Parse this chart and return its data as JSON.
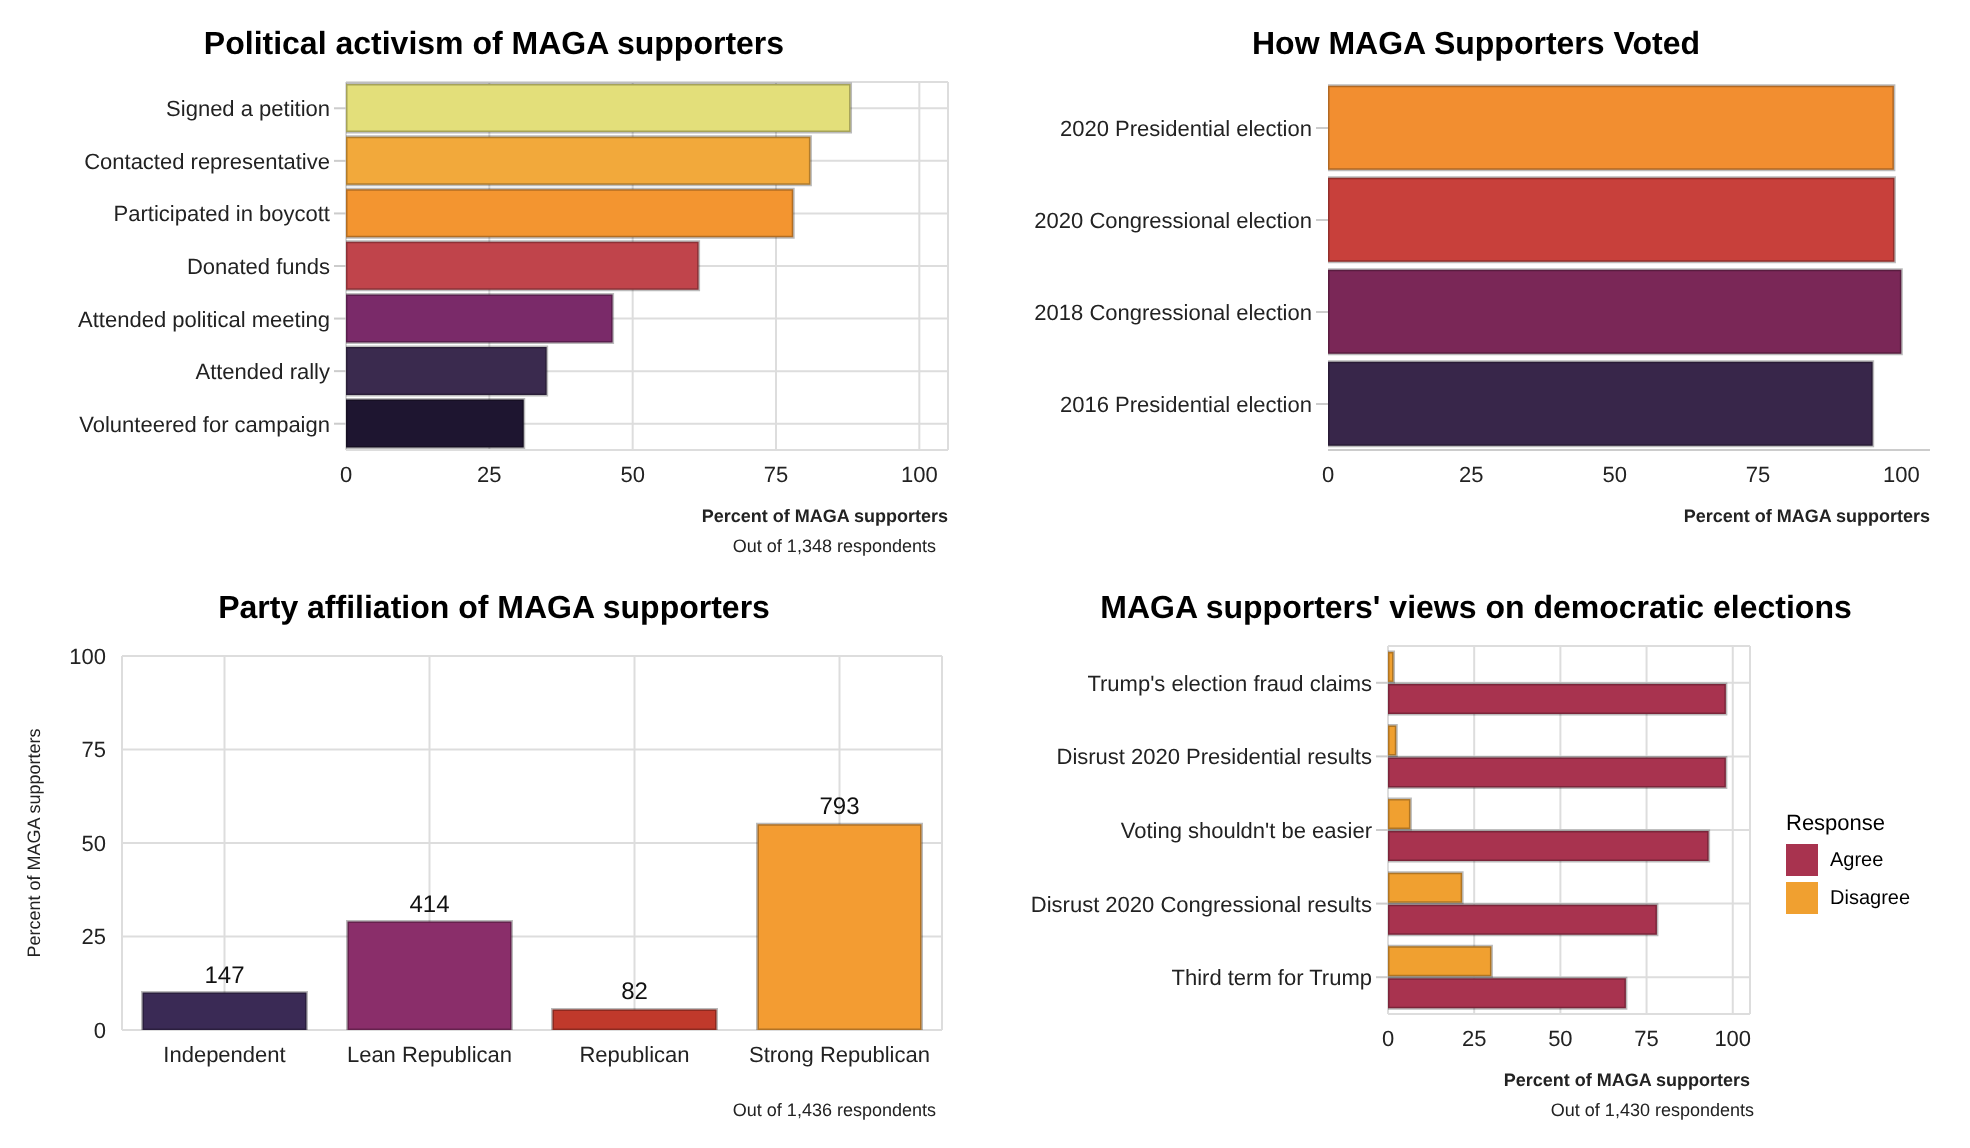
{
  "chart_data": [
    {
      "type": "bar",
      "orientation": "horizontal",
      "title": "Political activism of MAGA supporters",
      "xlabel": "Percent of MAGA supporters",
      "annotations": [
        "Out of 1,348 respondents"
      ],
      "categories": [
        "Signed a petition",
        "Contacted representative",
        "Participated in boycott",
        "Donated funds",
        "Attended political meeting",
        "Attended rally",
        "Volunteered for campaign"
      ],
      "values": [
        88,
        81,
        78,
        61.5,
        46.5,
        35,
        31
      ],
      "colors": [
        "#e3df7a",
        "#f2a93b",
        "#f39530",
        "#c0444b",
        "#7a2a69",
        "#3a2a4e",
        "#1e1530"
      ],
      "xlim": [
        0,
        105
      ],
      "xticks": [
        0,
        25,
        50,
        75,
        100
      ],
      "grid": true
    },
    {
      "type": "bar",
      "orientation": "horizontal",
      "title": "How MAGA Supporters Voted",
      "xlabel": "Percent of MAGA supporters",
      "categories": [
        "2020 Presidential election",
        "2020 Congressional election",
        "2018 Congressional election",
        "2016 Presidential election"
      ],
      "values": [
        98.7,
        98.8,
        100,
        95
      ],
      "colors": [
        "#f28e30",
        "#c8403b",
        "#7a2757",
        "#38264a"
      ],
      "xlim": [
        0,
        105
      ],
      "xticks": [
        0,
        25,
        50,
        75,
        100
      ],
      "grid": false
    },
    {
      "type": "bar",
      "title": "Party affiliation of MAGA supporters",
      "ylabel": "Percent of MAGA supporters",
      "annotations": [
        "Out of 1,436 respondents",
        {
          "text": "147",
          "x": "Independent",
          "y": 10
        },
        {
          "text": "414",
          "x": "Lean Republican",
          "y": 29
        },
        {
          "text": "82",
          "x": "Republican",
          "y": 5.5
        },
        {
          "text": "793",
          "x": "Strong Republican",
          "y": 55
        }
      ],
      "categories": [
        "Independent",
        "Lean Republican",
        "Republican",
        "Strong Republican"
      ],
      "values": [
        10,
        29,
        5.5,
        55
      ],
      "colors": [
        "#3a2a55",
        "#8a2e6a",
        "#c0392b",
        "#f39c32"
      ],
      "ylim": [
        0,
        100
      ],
      "yticks": [
        0,
        25,
        50,
        75,
        100
      ],
      "grid": true
    },
    {
      "type": "bar",
      "orientation": "horizontal",
      "title": "MAGA supporters' views on democratic elections",
      "xlabel": "Percent of MAGA supporters",
      "annotations": [
        "Out of 1,430 respondents"
      ],
      "legend_title": "Response",
      "legend": "right",
      "categories": [
        "Trump's election fraud claims",
        "Disrust 2020 Presidential results",
        "Voting shouldn't be easier",
        "Disrust 2020 Congressional results",
        "Third term for Trump"
      ],
      "series": [
        {
          "name": "Agree",
          "color": "#a8334f",
          "values": [
            98,
            98,
            93,
            78,
            69
          ]
        },
        {
          "name": "Disagree",
          "color": "#f0a030",
          "values": [
            1.6,
            2.4,
            6.5,
            21.5,
            30
          ]
        }
      ],
      "xlim": [
        0,
        105
      ],
      "xticks": [
        0,
        25,
        50,
        75,
        100
      ],
      "grid": true
    }
  ]
}
